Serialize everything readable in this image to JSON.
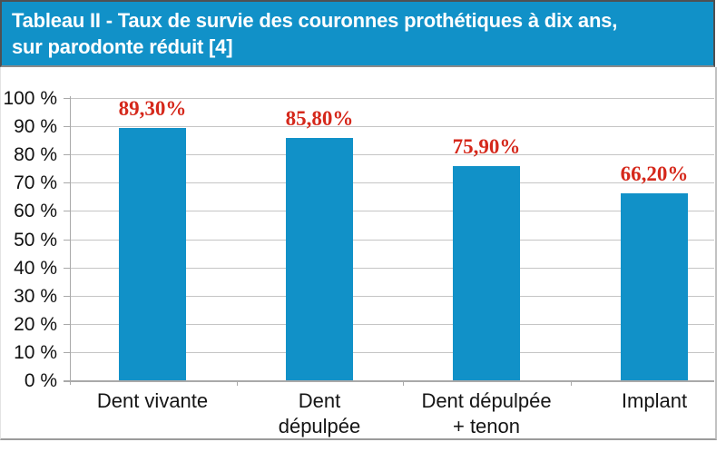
{
  "header": {
    "title_line1": "Tableau II - Taux de survie des couronnes prothétiques à dix ans,",
    "title_line2": "sur parodonte réduit [4]"
  },
  "colors": {
    "accent_blue": "#1191C8",
    "value_label_red": "#d5281b",
    "gridline_gray": "#c5c5c5",
    "axis_gray": "#a9a9a9",
    "title_text": "#ffffff"
  },
  "chart_data": {
    "type": "bar",
    "title": "Tableau II - Taux de survie des couronnes prothétiques à dix ans, sur parodonte réduit [4]",
    "categories": [
      "Dent vivante",
      "Dent dépulpée",
      "Dent dépulpée + tenon",
      "Implant"
    ],
    "category_label_lines": [
      [
        "Dent vivante"
      ],
      [
        "Dent",
        "dépulpée"
      ],
      [
        "Dent dépulpée",
        "+ tenon"
      ],
      [
        "Implant"
      ]
    ],
    "values": [
      89.3,
      85.8,
      75.9,
      66.2
    ],
    "value_labels": [
      "89,30%",
      "85,80%",
      "75,90%",
      "66,20%"
    ],
    "xlabel": "",
    "ylabel": "",
    "ylim": [
      0,
      100
    ],
    "yticks": [
      {
        "value": 0,
        "label": "0 %"
      },
      {
        "value": 10,
        "label": "10 %"
      },
      {
        "value": 20,
        "label": "20 %"
      },
      {
        "value": 30,
        "label": "30 %"
      },
      {
        "value": 40,
        "label": "40 %"
      },
      {
        "value": 50,
        "label": "50 %"
      },
      {
        "value": 60,
        "label": "60 %"
      },
      {
        "value": 70,
        "label": "70 %"
      },
      {
        "value": 80,
        "label": "80 %"
      },
      {
        "value": 90,
        "label": "90 %"
      },
      {
        "value": 100,
        "label": "100 %"
      }
    ],
    "grid": true,
    "legend": false,
    "bar_color": "#1191C8",
    "value_label_color": "#d5281b"
  }
}
